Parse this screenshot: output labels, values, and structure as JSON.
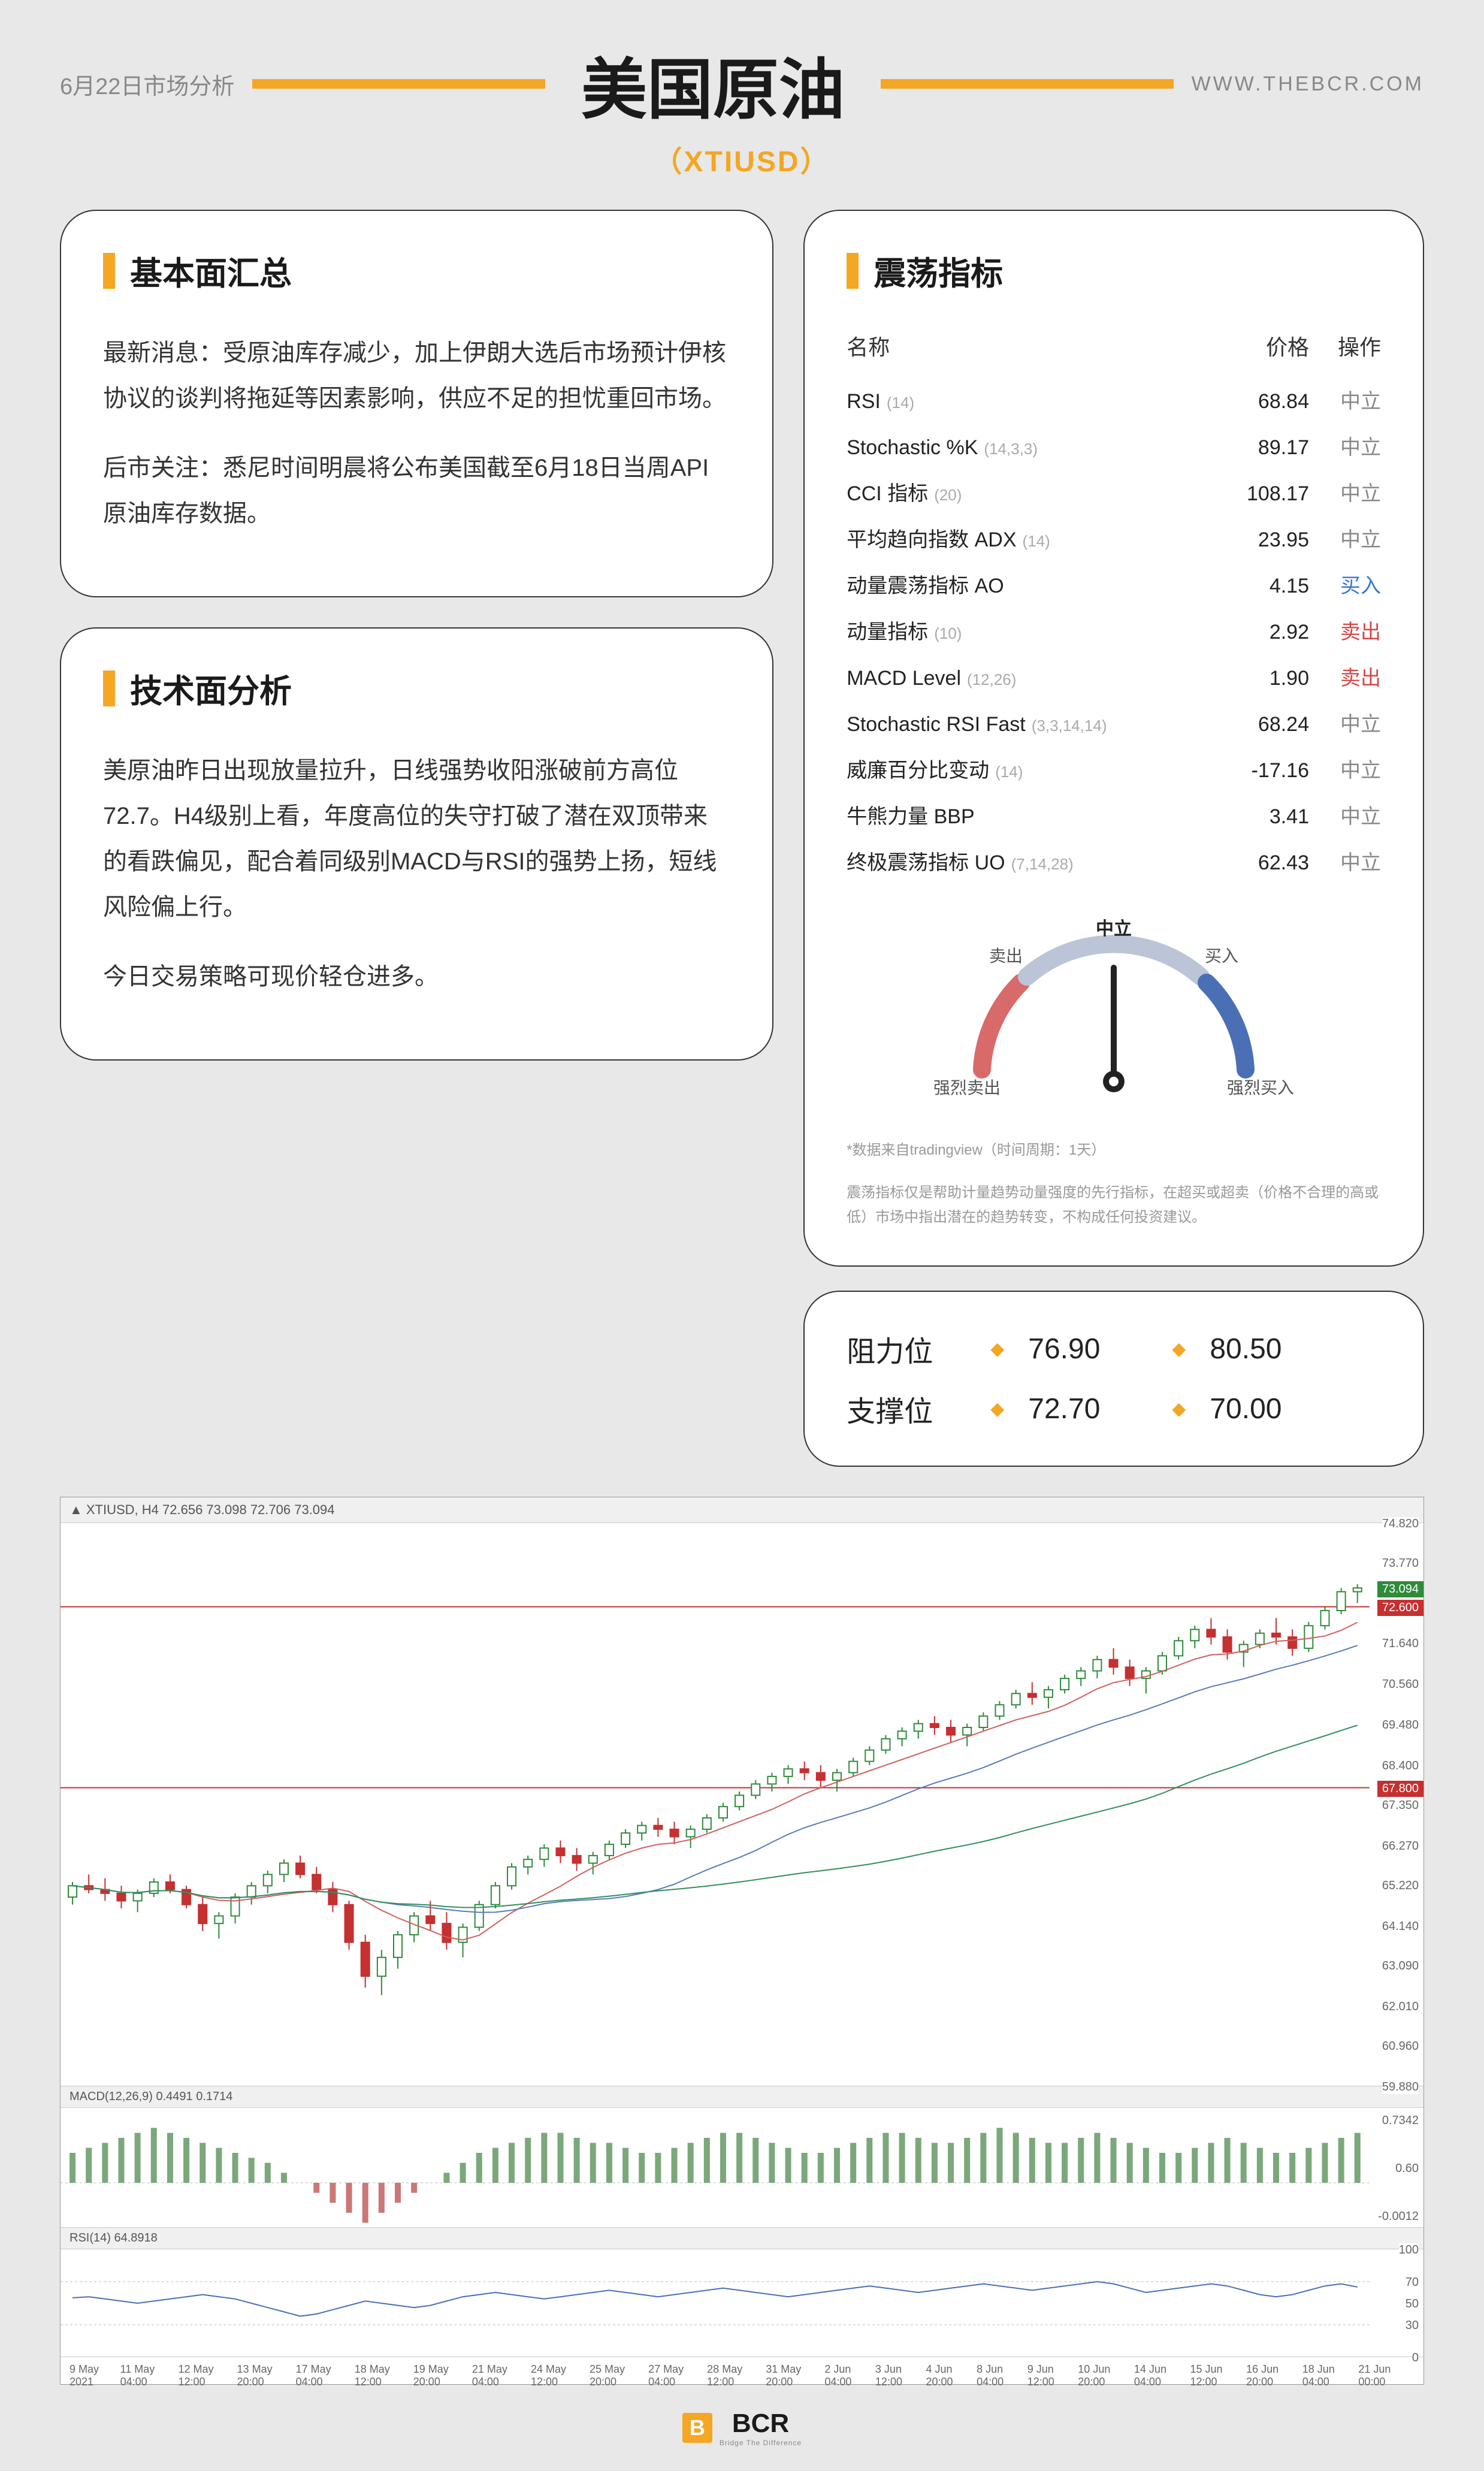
{
  "header": {
    "date": "6月22日市场分析",
    "title": "美国原油",
    "subtitle": "（XTIUSD）",
    "website": "WWW.THEBCR.COM"
  },
  "fundamental": {
    "title": "基本面汇总",
    "p1": "最新消息：受原油库存减少，加上伊朗大选后市场预计伊核协议的谈判将拖延等因素影响，供应不足的担忧重回市场。",
    "p2": "后市关注：悉尼时间明晨将公布美国截至6月18日当周API原油库存数据。"
  },
  "technical": {
    "title": "技术面分析",
    "p1": "美原油昨日出现放量拉升，日线强势收阳涨破前方高位72.7。H4级别上看，年度高位的失守打破了潜在双顶带来的看跌偏见，配合着同级别MACD与RSI的强势上扬，短线风险偏上行。",
    "p2": "今日交易策略可现价轻仓进多。"
  },
  "oscillators": {
    "title": "震荡指标",
    "headers": {
      "name": "名称",
      "value": "价格",
      "action": "操作"
    },
    "rows": [
      {
        "name": "RSI",
        "params": "(14)",
        "value": "68.84",
        "action": "中立",
        "cls": "act-neutral"
      },
      {
        "name": "Stochastic %K",
        "params": "(14,3,3)",
        "value": "89.17",
        "action": "中立",
        "cls": "act-neutral"
      },
      {
        "name": "CCI 指标",
        "params": "(20)",
        "value": "108.17",
        "action": "中立",
        "cls": "act-neutral"
      },
      {
        "name": "平均趋向指数 ADX",
        "params": "(14)",
        "value": "23.95",
        "action": "中立",
        "cls": "act-neutral"
      },
      {
        "name": "动量震荡指标 AO",
        "params": "",
        "value": "4.15",
        "action": "买入",
        "cls": "act-buy"
      },
      {
        "name": "动量指标",
        "params": "(10)",
        "value": "2.92",
        "action": "卖出",
        "cls": "act-sell"
      },
      {
        "name": "MACD Level",
        "params": "(12,26)",
        "value": "1.90",
        "action": "卖出",
        "cls": "act-sell"
      },
      {
        "name": "Stochastic RSI Fast",
        "params": "(3,3,14,14)",
        "value": "68.24",
        "action": "中立",
        "cls": "act-neutral"
      },
      {
        "name": "威廉百分比变动",
        "params": "(14)",
        "value": "-17.16",
        "action": "中立",
        "cls": "act-neutral"
      },
      {
        "name": "牛熊力量 BBP",
        "params": "",
        "value": "3.41",
        "action": "中立",
        "cls": "act-neutral"
      },
      {
        "name": "终极震荡指标 UO",
        "params": "(7,14,28)",
        "value": "62.43",
        "action": "中立",
        "cls": "act-neutral"
      }
    ],
    "gauge": {
      "strong_sell": "强烈卖出",
      "sell": "卖出",
      "neutral": "中立",
      "buy": "买入",
      "strong_buy": "强烈买入",
      "needle_angle": -90,
      "sell_color": "#d96a6a",
      "neutral_color": "#bcc4d8",
      "buy_color": "#4a6fb5"
    },
    "disclaimer1": "*数据来自tradingview（时间周期：1天）",
    "disclaimer2": "震荡指标仅是帮助计量趋势动量强度的先行指标，在超买或超卖（价格不合理的高或低）市场中指出潜在的趋势转变，不构成任何投资建议。"
  },
  "levels": {
    "resistance": {
      "label": "阻力位",
      "v1": "76.90",
      "v2": "80.50"
    },
    "support": {
      "label": "支撑位",
      "v1": "72.70",
      "v2": "70.00"
    }
  },
  "chart": {
    "header": "▲ XTIUSD, H4  72.656 73.098 72.706 73.094",
    "macd_header": "MACD(12,26,9) 0.4491 0.1714",
    "rsi_header": "RSI(14) 64.8918",
    "y_max": 74.82,
    "y_min": 59.88,
    "y_labels": [
      "74.820",
      "73.770",
      "71.640",
      "70.560",
      "69.480",
      "68.400",
      "67.350",
      "66.270",
      "65.220",
      "64.140",
      "63.090",
      "62.010",
      "60.960",
      "59.880"
    ],
    "price_tag_green": {
      "value": "73.094",
      "color": "#2e8b3a"
    },
    "price_tag_red1": {
      "value": "72.600",
      "color": "#c53030"
    },
    "price_tag_red2": {
      "value": "67.800",
      "color": "#c53030"
    },
    "macd_labels": [
      "0.7342",
      "0.60",
      "-0.0012"
    ],
    "rsi_labels": [
      "100",
      "70",
      "50",
      "30",
      "0"
    ],
    "xticks": [
      "9 May 2021",
      "11 May 04:00",
      "12 May 12:00",
      "13 May 20:00",
      "17 May 04:00",
      "18 May 12:00",
      "19 May 20:00",
      "21 May 04:00",
      "24 May 12:00",
      "25 May 20:00",
      "27 May 04:00",
      "28 May 12:00",
      "31 May 20:00",
      "2 Jun 04:00",
      "3 Jun 12:00",
      "4 Jun 20:00",
      "8 Jun 04:00",
      "9 Jun 12:00",
      "10 Jun 20:00",
      "14 Jun 04:00",
      "15 Jun 12:00",
      "16 Jun 20:00",
      "18 Jun 04:00",
      "21 Jun 00:00"
    ],
    "candles": {
      "up_color": "#2e8b3a",
      "down_color": "#c53030",
      "ma_red": "#d06060",
      "ma_blue": "#5a7ab8",
      "ma_green": "#2f8f5f",
      "data": [
        [
          0,
          64.9,
          65.3,
          64.7,
          65.2
        ],
        [
          1,
          65.2,
          65.5,
          65.0,
          65.1
        ],
        [
          2,
          65.1,
          65.4,
          64.8,
          65.0
        ],
        [
          3,
          65.0,
          65.2,
          64.6,
          64.8
        ],
        [
          4,
          64.8,
          65.1,
          64.5,
          65.0
        ],
        [
          5,
          65.0,
          65.4,
          64.9,
          65.3
        ],
        [
          6,
          65.3,
          65.5,
          65.0,
          65.1
        ],
        [
          7,
          65.1,
          65.2,
          64.6,
          64.7
        ],
        [
          8,
          64.7,
          64.9,
          64.0,
          64.2
        ],
        [
          9,
          64.2,
          64.5,
          63.8,
          64.4
        ],
        [
          10,
          64.4,
          65.0,
          64.2,
          64.9
        ],
        [
          11,
          64.9,
          65.3,
          64.7,
          65.2
        ],
        [
          12,
          65.2,
          65.6,
          65.0,
          65.5
        ],
        [
          13,
          65.5,
          65.9,
          65.3,
          65.8
        ],
        [
          14,
          65.8,
          66.0,
          65.4,
          65.5
        ],
        [
          15,
          65.5,
          65.7,
          65.0,
          65.1
        ],
        [
          16,
          65.1,
          65.3,
          64.5,
          64.7
        ],
        [
          17,
          64.7,
          64.8,
          63.5,
          63.7
        ],
        [
          18,
          63.7,
          63.9,
          62.5,
          62.8
        ],
        [
          19,
          62.8,
          63.5,
          62.3,
          63.3
        ],
        [
          20,
          63.3,
          64.0,
          63.0,
          63.9
        ],
        [
          21,
          63.9,
          64.5,
          63.7,
          64.4
        ],
        [
          22,
          64.4,
          64.8,
          64.0,
          64.2
        ],
        [
          23,
          64.2,
          64.5,
          63.5,
          63.7
        ],
        [
          24,
          63.7,
          64.2,
          63.3,
          64.1
        ],
        [
          25,
          64.1,
          64.8,
          64.0,
          64.7
        ],
        [
          26,
          64.7,
          65.3,
          64.6,
          65.2
        ],
        [
          27,
          65.2,
          65.8,
          65.1,
          65.7
        ],
        [
          28,
          65.7,
          66.0,
          65.5,
          65.9
        ],
        [
          29,
          65.9,
          66.3,
          65.7,
          66.2
        ],
        [
          30,
          66.2,
          66.4,
          65.8,
          66.0
        ],
        [
          31,
          66.0,
          66.2,
          65.6,
          65.8
        ],
        [
          32,
          65.8,
          66.1,
          65.5,
          66.0
        ],
        [
          33,
          66.0,
          66.4,
          65.9,
          66.3
        ],
        [
          34,
          66.3,
          66.7,
          66.2,
          66.6
        ],
        [
          35,
          66.6,
          66.9,
          66.4,
          66.8
        ],
        [
          36,
          66.8,
          67.0,
          66.5,
          66.7
        ],
        [
          37,
          66.7,
          66.9,
          66.3,
          66.5
        ],
        [
          38,
          66.5,
          66.8,
          66.2,
          66.7
        ],
        [
          39,
          66.7,
          67.1,
          66.6,
          67.0
        ],
        [
          40,
          67.0,
          67.4,
          66.9,
          67.3
        ],
        [
          41,
          67.3,
          67.7,
          67.2,
          67.6
        ],
        [
          42,
          67.6,
          68.0,
          67.5,
          67.9
        ],
        [
          43,
          67.9,
          68.2,
          67.7,
          68.1
        ],
        [
          44,
          68.1,
          68.4,
          67.9,
          68.3
        ],
        [
          45,
          68.3,
          68.5,
          68.0,
          68.2
        ],
        [
          46,
          68.2,
          68.4,
          67.8,
          68.0
        ],
        [
          47,
          68.0,
          68.3,
          67.7,
          68.2
        ],
        [
          48,
          68.2,
          68.6,
          68.1,
          68.5
        ],
        [
          49,
          68.5,
          68.9,
          68.4,
          68.8
        ],
        [
          50,
          68.8,
          69.2,
          68.7,
          69.1
        ],
        [
          51,
          69.1,
          69.4,
          68.9,
          69.3
        ],
        [
          52,
          69.3,
          69.6,
          69.1,
          69.5
        ],
        [
          53,
          69.5,
          69.7,
          69.2,
          69.4
        ],
        [
          54,
          69.4,
          69.6,
          69.0,
          69.2
        ],
        [
          55,
          69.2,
          69.5,
          68.9,
          69.4
        ],
        [
          56,
          69.4,
          69.8,
          69.3,
          69.7
        ],
        [
          57,
          69.7,
          70.1,
          69.6,
          70.0
        ],
        [
          58,
          70.0,
          70.4,
          69.9,
          70.3
        ],
        [
          59,
          70.3,
          70.6,
          70.0,
          70.2
        ],
        [
          60,
          70.2,
          70.5,
          69.9,
          70.4
        ],
        [
          61,
          70.4,
          70.8,
          70.3,
          70.7
        ],
        [
          62,
          70.7,
          71.0,
          70.5,
          70.9
        ],
        [
          63,
          70.9,
          71.3,
          70.7,
          71.2
        ],
        [
          64,
          71.2,
          71.5,
          70.8,
          71.0
        ],
        [
          65,
          71.0,
          71.2,
          70.5,
          70.7
        ],
        [
          66,
          70.7,
          71.0,
          70.3,
          70.9
        ],
        [
          67,
          70.9,
          71.4,
          70.8,
          71.3
        ],
        [
          68,
          71.3,
          71.8,
          71.2,
          71.7
        ],
        [
          69,
          71.7,
          72.1,
          71.5,
          72.0
        ],
        [
          70,
          72.0,
          72.3,
          71.6,
          71.8
        ],
        [
          71,
          71.8,
          72.0,
          71.2,
          71.4
        ],
        [
          72,
          71.4,
          71.7,
          71.0,
          71.6
        ],
        [
          73,
          71.6,
          72.0,
          71.5,
          71.9
        ],
        [
          74,
          71.9,
          72.3,
          71.6,
          71.8
        ],
        [
          75,
          71.8,
          72.0,
          71.3,
          71.5
        ],
        [
          76,
          71.5,
          72.2,
          71.4,
          72.1
        ],
        [
          77,
          72.1,
          72.6,
          72.0,
          72.5
        ],
        [
          78,
          72.5,
          73.1,
          72.4,
          73.0
        ],
        [
          79,
          73.0,
          73.2,
          72.7,
          73.1
        ]
      ]
    },
    "hline_red1": 72.6,
    "hline_red2": 67.8,
    "macd_bars": [
      0.3,
      0.35,
      0.4,
      0.45,
      0.5,
      0.55,
      0.5,
      0.45,
      0.4,
      0.35,
      0.3,
      0.25,
      0.2,
      0.1,
      0.0,
      -0.1,
      -0.2,
      -0.3,
      -0.4,
      -0.3,
      -0.2,
      -0.1,
      0.0,
      0.1,
      0.2,
      0.3,
      0.35,
      0.4,
      0.45,
      0.5,
      0.5,
      0.45,
      0.4,
      0.4,
      0.35,
      0.3,
      0.3,
      0.35,
      0.4,
      0.45,
      0.5,
      0.5,
      0.45,
      0.4,
      0.35,
      0.3,
      0.3,
      0.35,
      0.4,
      0.45,
      0.5,
      0.5,
      0.45,
      0.4,
      0.4,
      0.45,
      0.5,
      0.55,
      0.5,
      0.45,
      0.4,
      0.4,
      0.45,
      0.5,
      0.45,
      0.4,
      0.35,
      0.3,
      0.3,
      0.35,
      0.4,
      0.45,
      0.4,
      0.35,
      0.3,
      0.3,
      0.35,
      0.4,
      0.45,
      0.5
    ],
    "rsi_line": [
      55,
      56,
      54,
      52,
      50,
      52,
      54,
      56,
      58,
      56,
      54,
      50,
      46,
      42,
      38,
      40,
      44,
      48,
      52,
      50,
      48,
      46,
      48,
      52,
      56,
      58,
      60,
      58,
      56,
      54,
      56,
      58,
      60,
      62,
      60,
      58,
      56,
      58,
      60,
      62,
      64,
      62,
      60,
      58,
      56,
      58,
      60,
      62,
      64,
      66,
      64,
      62,
      60,
      62,
      64,
      66,
      68,
      66,
      64,
      62,
      64,
      66,
      68,
      70,
      68,
      64,
      60,
      62,
      64,
      66,
      68,
      66,
      62,
      58,
      56,
      58,
      62,
      66,
      68,
      65
    ]
  },
  "footer": {
    "logo_text": "BCR",
    "logo_sub": "Bridge The Difference"
  },
  "colors": {
    "accent": "#f5a623",
    "bg": "#e8e8e8"
  }
}
